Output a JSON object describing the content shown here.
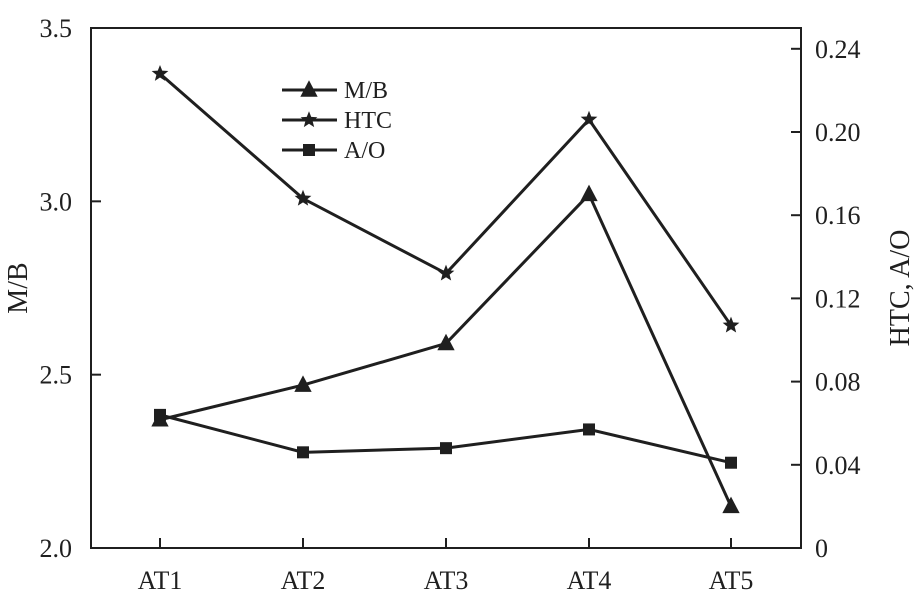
{
  "chart_data": {
    "type": "line",
    "categories": [
      "AT1",
      "AT2",
      "AT3",
      "AT4",
      "AT5"
    ],
    "title": "",
    "xlabel": "",
    "ylabel_left": "M/B",
    "ylabel_right": "HTC, A/O",
    "ylim_left": [
      2.0,
      3.5
    ],
    "ylim_right": [
      0,
      0.25
    ],
    "yticks_left": [
      "2.0",
      "2.5",
      "3.0",
      "3.5"
    ],
    "yticks_right": [
      "0",
      "0.04",
      "0.08",
      "0.12",
      "0.16",
      "0.20",
      "0.24"
    ],
    "grid": false,
    "legend": "top-center",
    "series": [
      {
        "name": "M/B",
        "axis": "left",
        "marker": "triangle",
        "values": [
          2.37,
          2.47,
          2.59,
          3.02,
          2.12
        ]
      },
      {
        "name": "HTC",
        "axis": "right",
        "marker": "star",
        "values": [
          0.228,
          0.168,
          0.132,
          0.206,
          0.107
        ]
      },
      {
        "name": "A/O",
        "axis": "right",
        "marker": "square",
        "values": [
          0.064,
          0.046,
          0.048,
          0.057,
          0.041
        ]
      }
    ]
  },
  "colors": {
    "ink": "#1f1f1f",
    "background": "#ffffff"
  }
}
